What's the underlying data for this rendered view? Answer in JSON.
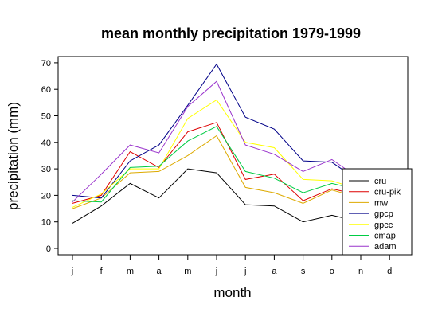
{
  "chart_data": {
    "type": "line",
    "title": "mean monthly precipitation 1979-1999",
    "xlabel": "month",
    "ylabel": "precipitation (mm)",
    "categories": [
      "j",
      "f",
      "m",
      "a",
      "m",
      "j",
      "j",
      "a",
      "s",
      "o",
      "n",
      "d"
    ],
    "ylim": [
      0,
      70
    ],
    "yticks": [
      0,
      10,
      20,
      30,
      40,
      50,
      60,
      70
    ],
    "grid": false,
    "legend": "bottom-right",
    "series": [
      {
        "name": "cru",
        "color": "#000000",
        "values": [
          9.5,
          16,
          24.5,
          19,
          30,
          28.5,
          16.5,
          16,
          10,
          12.5,
          10,
          9
        ]
      },
      {
        "name": "cru-pik",
        "color": "#dd0000",
        "values": [
          17,
          20,
          36.5,
          30.5,
          44,
          47.5,
          26,
          28,
          18,
          22.5,
          20,
          17
        ]
      },
      {
        "name": "mw",
        "color": "#ddaa00",
        "values": [
          15,
          19,
          28.5,
          29,
          35,
          42.5,
          23,
          21,
          17,
          22,
          19,
          16
        ]
      },
      {
        "name": "gpcp",
        "color": "#000088",
        "values": [
          20,
          19,
          33,
          39,
          54,
          69.5,
          49.5,
          45,
          33,
          32.5,
          25,
          21
        ]
      },
      {
        "name": "gpcc",
        "color": "#ffff00",
        "values": [
          15.5,
          20.5,
          30,
          30,
          49,
          56,
          40,
          38,
          26,
          25.5,
          22,
          18
        ]
      },
      {
        "name": "cmap",
        "color": "#00cc44",
        "values": [
          18,
          17.5,
          30.5,
          31,
          40.5,
          46,
          29,
          26.5,
          21,
          24.5,
          22,
          19
        ]
      },
      {
        "name": "adam",
        "color": "#9933cc",
        "values": [
          17.5,
          28,
          39,
          36,
          53.5,
          63,
          39,
          35.5,
          29,
          33.5,
          26,
          21
        ]
      }
    ]
  }
}
